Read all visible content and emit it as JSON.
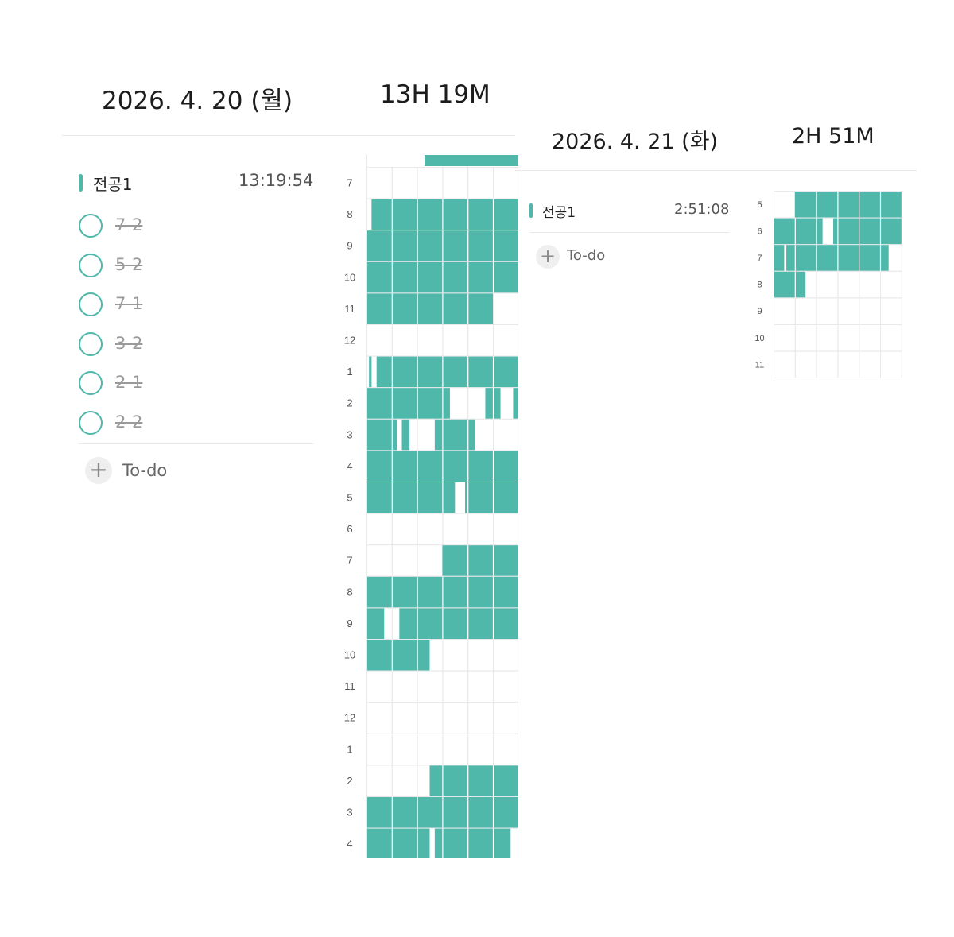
{
  "theme": {
    "accent": "#4fb8ab",
    "grid_line": "#e9e9e9"
  },
  "day1": {
    "date": "2026. 4. 20 (월)",
    "total": "13H 19M",
    "subject": {
      "name": "전공1",
      "time": "13:19:54"
    },
    "todos": [
      {
        "label": "7-2",
        "done": true
      },
      {
        "label": "5-2",
        "done": true
      },
      {
        "label": "7-1",
        "done": true
      },
      {
        "label": "3-2",
        "done": true
      },
      {
        "label": "2-1",
        "done": true
      },
      {
        "label": "2-2",
        "done": true
      }
    ],
    "add_todo": {
      "icon": "plus-icon",
      "label": "To-do"
    },
    "timeline": {
      "hours": [
        "7",
        "8",
        "9",
        "10",
        "11",
        "12",
        "1",
        "2",
        "3",
        "4",
        "5",
        "6",
        "7",
        "8",
        "9",
        "10",
        "11",
        "12",
        "1",
        "2",
        "3",
        "4"
      ],
      "studied_minutes": [
        [],
        [
          [
            2,
            60
          ]
        ],
        [
          [
            0,
            60
          ]
        ],
        [
          [
            0,
            60
          ]
        ],
        [
          [
            0,
            50
          ]
        ],
        [],
        [
          [
            1,
            2
          ],
          [
            4,
            60
          ]
        ],
        [
          [
            0,
            33
          ],
          [
            47,
            53
          ],
          [
            58,
            60
          ]
        ],
        [
          [
            0,
            12
          ],
          [
            14,
            17
          ],
          [
            27,
            43
          ]
        ],
        [
          [
            0,
            60
          ]
        ],
        [
          [
            0,
            35
          ],
          [
            39,
            60
          ]
        ],
        [],
        [
          [
            30,
            60
          ]
        ],
        [
          [
            0,
            60
          ]
        ],
        [
          [
            0,
            7
          ],
          [
            13,
            60
          ]
        ],
        [
          [
            0,
            25
          ]
        ],
        [],
        [],
        [],
        [
          [
            25,
            60
          ]
        ],
        [
          [
            0,
            60
          ]
        ],
        [
          [
            0,
            25
          ],
          [
            27,
            57
          ]
        ]
      ]
    }
  },
  "day2": {
    "date": "2026. 4. 21 (화)",
    "total": "2H 51M",
    "subject": {
      "name": "전공1",
      "time": "2:51:08"
    },
    "add_todo": {
      "icon": "plus-icon",
      "label": "To-do"
    },
    "timeline": {
      "hours": [
        "5",
        "6",
        "7",
        "8",
        "9",
        "10",
        "11"
      ],
      "studied_minutes": [
        [
          [
            10,
            60
          ]
        ],
        [
          [
            0,
            23
          ],
          [
            28,
            60
          ]
        ],
        [
          [
            0,
            5
          ],
          [
            6,
            54
          ]
        ],
        [
          [
            0,
            15
          ]
        ],
        [],
        [],
        []
      ]
    }
  }
}
